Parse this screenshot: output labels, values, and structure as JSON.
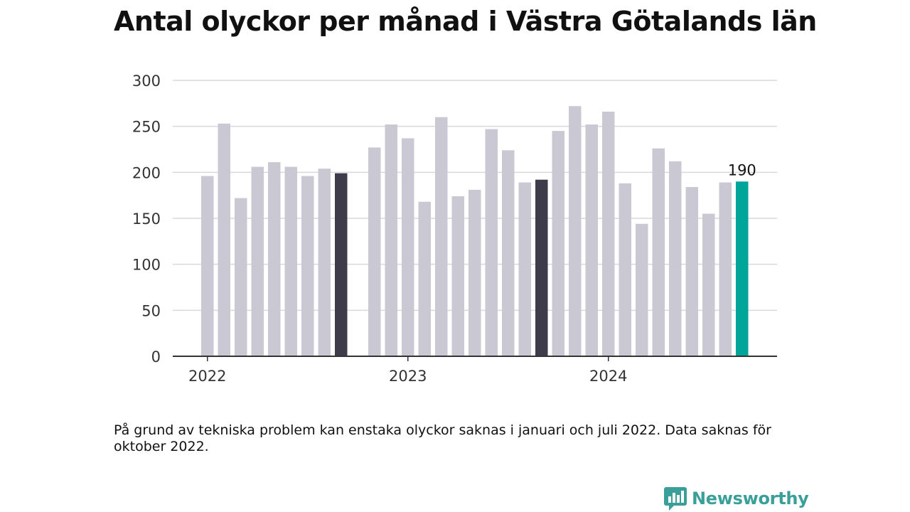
{
  "chart_data": {
    "type": "bar",
    "title": "Antal olyckor per månad i Västra Götalands län",
    "xlabel": "",
    "ylabel": "",
    "ylim": [
      0,
      300
    ],
    "yticks": [
      "0",
      "50",
      "100",
      "150",
      "200",
      "250",
      "300"
    ],
    "year_labels": [
      {
        "label": "2022",
        "month_index": 0
      },
      {
        "label": "2023",
        "month_index": 12
      },
      {
        "label": "2024",
        "month_index": 24
      }
    ],
    "series": [
      {
        "values": [
          196,
          253,
          172,
          206,
          211,
          206,
          196,
          204,
          199,
          null,
          227,
          252,
          237,
          168,
          260,
          174,
          181,
          247,
          224,
          189,
          192,
          245,
          272,
          252,
          266,
          188,
          144,
          226,
          212,
          184,
          155,
          189,
          190
        ]
      }
    ],
    "highlighted_months": [
      8,
      20
    ],
    "latest_month_index": 32,
    "latest_value_label": "190",
    "grid": true,
    "colors": {
      "bar": "#c9c8d3",
      "highlight": "#3e3c4a",
      "latest": "#00a59a",
      "grid": "#d9d9dd",
      "axis": "#333333"
    }
  },
  "note": "På grund av tekniska problem kan enstaka olyckor saknas i januari och juli 2022. Data saknas för oktober 2022.",
  "brand": {
    "name": "Newsworthy",
    "icon": "newsworthy-logo-icon",
    "color": "#3a9f99"
  }
}
